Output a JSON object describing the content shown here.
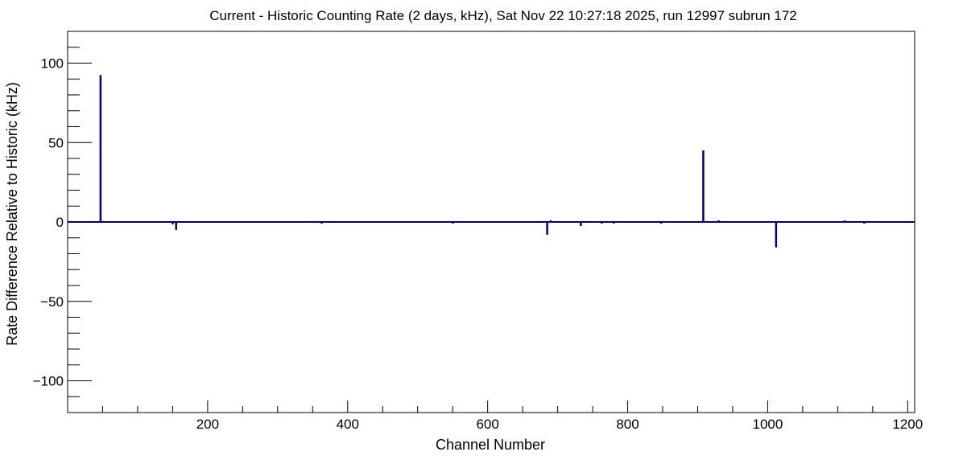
{
  "chart_data": {
    "type": "bar",
    "title": "Current - Historic Counting Rate (2 days, kHz), Sat Nov 22 10:27:18 2025, run 12997 subrun 172",
    "xlabel": "Channel Number",
    "ylabel": "Rate Difference Relative to Historic (kHz)",
    "xlim": [
      0,
      1210
    ],
    "ylim": [
      -120,
      120
    ],
    "x_major_ticks": [
      200,
      400,
      600,
      800,
      1000,
      1200
    ],
    "x_minor_step": 50,
    "y_major_ticks": [
      -100,
      -50,
      0,
      50,
      100
    ],
    "y_minor_step": 10,
    "x_tick_labels": [
      "200",
      "400",
      "600",
      "800",
      "1000",
      "1200"
    ],
    "y_tick_labels": [
      "−100",
      "−50",
      "0",
      "50",
      "100"
    ],
    "grid": false,
    "legend": "none",
    "bar_color": "#000080",
    "series": [
      {
        "channels": [
          47,
          150,
          155,
          363,
          550,
          685,
          690,
          733,
          763,
          780,
          848,
          908,
          930,
          1012,
          1110,
          1138
        ],
        "values": [
          92.5,
          -1.5,
          -5,
          -1,
          -1,
          -8,
          1,
          -2.5,
          -1,
          -1,
          -1,
          45,
          1,
          -16,
          1,
          -1
        ]
      }
    ]
  }
}
